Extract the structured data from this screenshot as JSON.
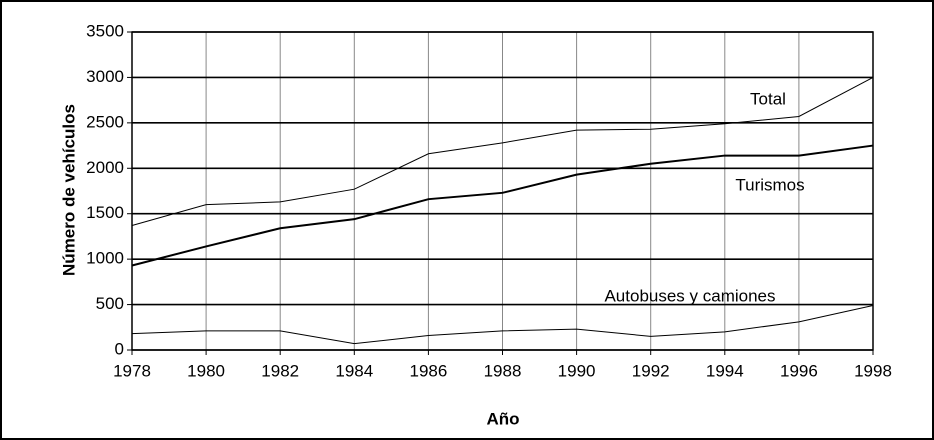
{
  "chart_data": {
    "type": "line",
    "x_label": "Año",
    "y_label": "Número de vehículos",
    "x": [
      1978,
      1980,
      1982,
      1984,
      1986,
      1988,
      1990,
      1992,
      1994,
      1996,
      1998
    ],
    "series": [
      {
        "name": "Total",
        "color": "#000000",
        "values": [
          1370,
          1600,
          1630,
          1770,
          2160,
          2280,
          2420,
          2430,
          2490,
          2570,
          3000
        ]
      },
      {
        "name": "Turismos",
        "color": "#000000",
        "values": [
          930,
          1140,
          1340,
          1440,
          1660,
          1730,
          1930,
          2050,
          2140,
          2140,
          2250
        ]
      },
      {
        "name": "Autobuses y camiones",
        "color": "#000000",
        "values": [
          180,
          210,
          210,
          70,
          160,
          210,
          230,
          150,
          200,
          310,
          490
        ]
      }
    ],
    "xlim": [
      1978,
      1998
    ],
    "xticks": [
      1978,
      1980,
      1982,
      1984,
      1986,
      1988,
      1990,
      1992,
      1994,
      1996,
      1998
    ],
    "ylim": [
      0,
      3500
    ],
    "yticks": [
      0,
      500,
      1000,
      1500,
      2000,
      2500,
      3000,
      3500
    ],
    "grid": true
  }
}
